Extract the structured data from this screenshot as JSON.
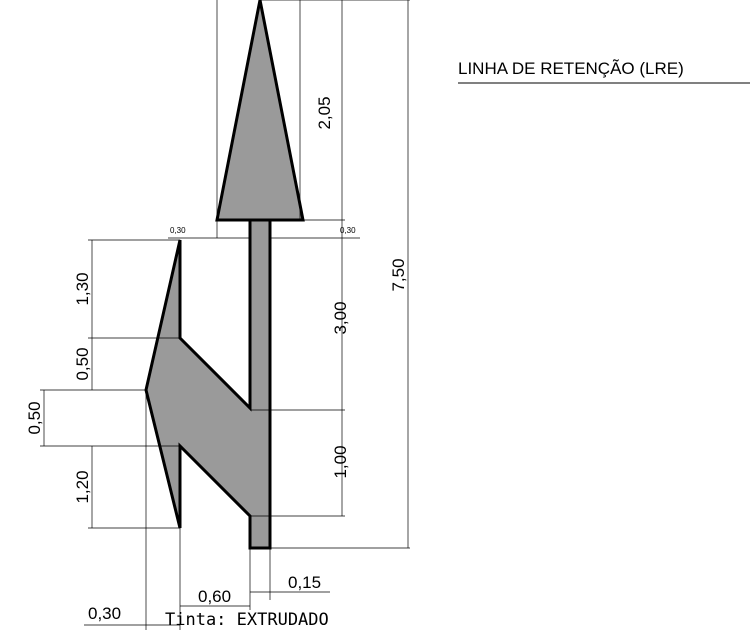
{
  "title": "LINHA DE RETENÇÃO (LRE)",
  "note": "Tinta:  EXTRUDADO",
  "colors": {
    "fill": "#9a9a9a",
    "stroke": "#000000",
    "background": "#ffffff"
  },
  "dimensions": {
    "arrow_head_length": "2,05",
    "total_length": "7,50",
    "stem_length": "3,00",
    "lower_length": "1,00",
    "stem_offset_left": "0,30",
    "stem_offset_right": "0,30",
    "left_upper": "1,30",
    "left_diag_upper": "0,50",
    "left_point": "0,50",
    "left_lower": "1,20",
    "bottom_width_060": "0,60",
    "bottom_width_015": "0,15",
    "bottom_width_030": "0,30"
  }
}
